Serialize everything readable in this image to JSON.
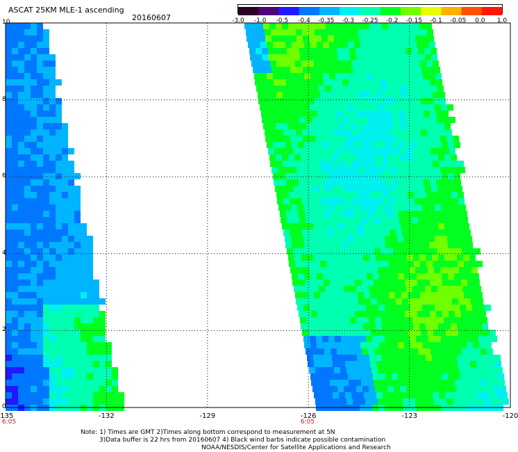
{
  "header": {
    "title": "ASCAT 25KM MLE-1 ascending",
    "date": "20160607"
  },
  "colorbar": {
    "labels": [
      "-3.0",
      "-1.0",
      "-0.5",
      "-0.4",
      "-0.35",
      "-0.3",
      "-0.25",
      "-0.2",
      "-0.15",
      "-0.1",
      "-0.05",
      "0.0",
      "1.0"
    ],
    "colors": [
      "#2b0024",
      "#50007a",
      "#1f1aff",
      "#0077ff",
      "#00b4ff",
      "#00f0f0",
      "#00ffb0",
      "#00ff20",
      "#70ff00",
      "#e8ff00",
      "#ffb000",
      "#ff5000",
      "#ff1800"
    ]
  },
  "axes": {
    "x_labels": [
      "-135",
      "-132",
      "-129",
      "-126",
      "-123",
      "-120"
    ],
    "y_labels": [
      "0",
      "2",
      "4",
      "6",
      "8",
      "10"
    ],
    "x_range": [
      -135,
      -120
    ],
    "y_range": [
      0,
      10
    ],
    "grid": "dotted"
  },
  "time_labels": [
    "6:05",
    "6:05"
  ],
  "notes": [
    "Note: 1) Times are GMT 2)Times along bottom correspond to measurement at 5N",
    "3)Data buffer is 22 hrs from 20160607 4) Black wind barbs indicate possible contamination",
    "NOAA/NESDIS/Center for Satellite Applications and Research"
  ]
}
